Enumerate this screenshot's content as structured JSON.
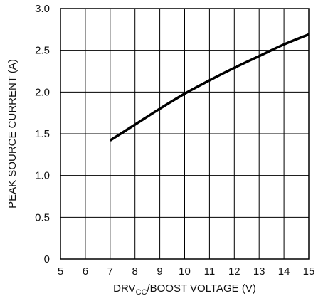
{
  "chart_data": {
    "type": "line",
    "xlabel_main": "DRV",
    "xlabel_sub": "CC",
    "xlabel_rest": "/BOOST VOLTAGE (V)",
    "ylabel": "PEAK SOURCE CURRENT (A)",
    "xlim": [
      5,
      15
    ],
    "ylim": [
      0,
      3.0
    ],
    "x_ticks": [
      "5",
      "6",
      "7",
      "8",
      "9",
      "10",
      "11",
      "12",
      "13",
      "14",
      "15"
    ],
    "y_ticks": [
      "0",
      "0.5",
      "1.0",
      "1.5",
      "2.0",
      "2.5",
      "3.0"
    ],
    "grid": true,
    "series": [
      {
        "x": [
          7,
          8,
          9,
          10,
          11,
          12,
          13,
          14,
          15
        ],
        "y": [
          1.42,
          1.61,
          1.8,
          1.98,
          2.14,
          2.29,
          2.43,
          2.57,
          2.69
        ],
        "color": "#000000"
      }
    ]
  }
}
